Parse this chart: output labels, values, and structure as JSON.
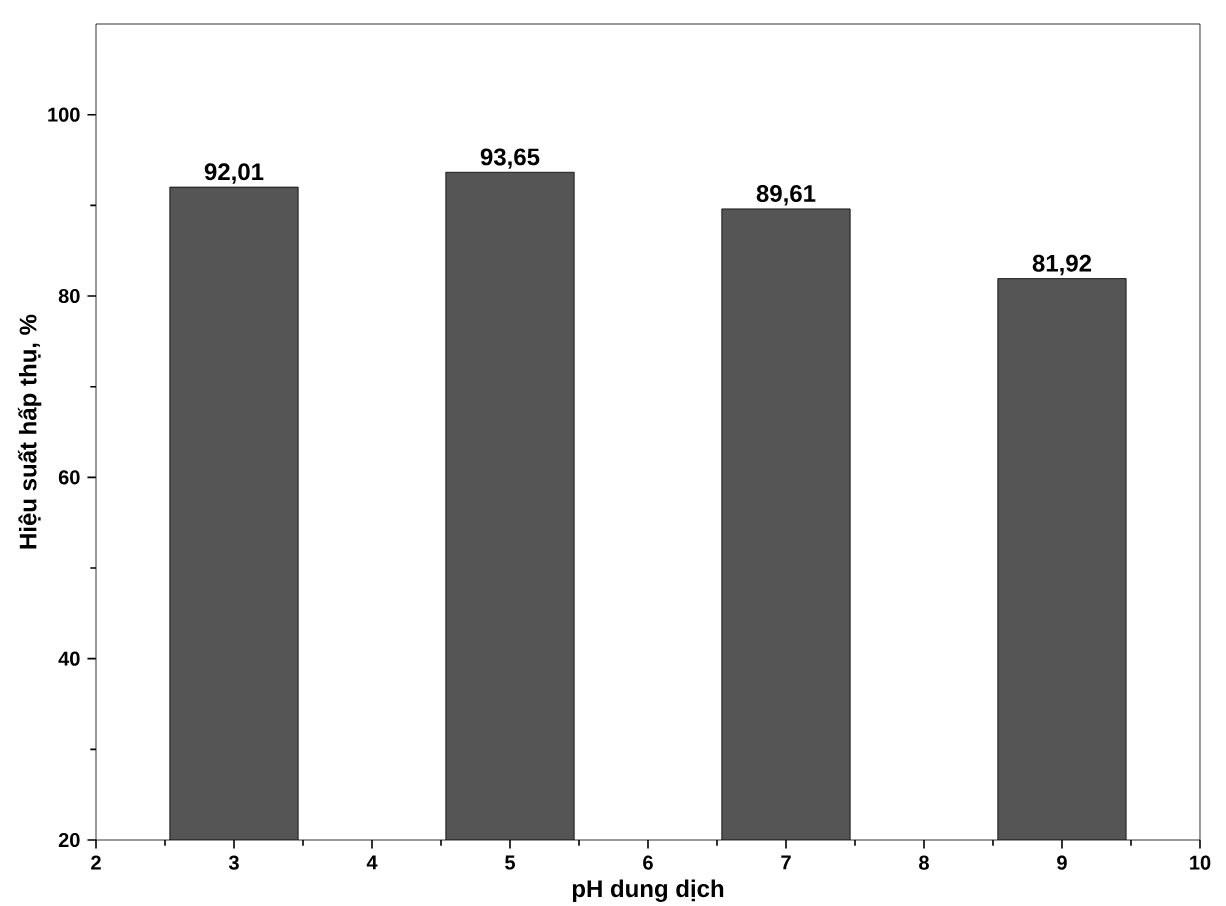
{
  "chart_data": {
    "type": "bar",
    "xlabel": "pH dung dịch",
    "ylabel": "Hiệu suất hấp thụ, %",
    "x": [
      3,
      5,
      7,
      9
    ],
    "values": [
      92.01,
      93.65,
      89.61,
      81.92
    ],
    "value_labels": [
      "92,01",
      "93,65",
      "89,61",
      "81,92"
    ],
    "color": "#555555",
    "xlim": [
      2,
      10
    ],
    "xticks": [
      2,
      3,
      4,
      5,
      6,
      7,
      8,
      9,
      10
    ],
    "ylim": [
      20,
      110
    ],
    "yticks": [
      20,
      40,
      60,
      80,
      100
    ]
  }
}
